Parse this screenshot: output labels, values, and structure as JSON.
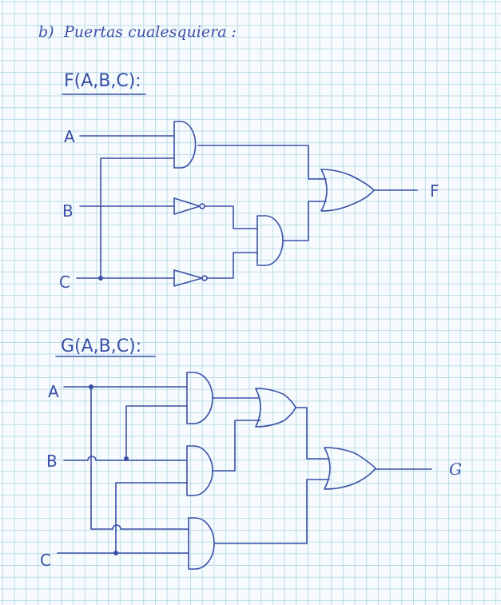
{
  "heading": {
    "index": "b)",
    "text": "Puertas cualesquiera :"
  },
  "circuit_f": {
    "title": "F(A,B,C):",
    "inputs": [
      "A",
      "B",
      "C"
    ],
    "output": "F"
  },
  "circuit_g": {
    "title": "G(A,B,C):",
    "inputs": [
      "A",
      "B",
      "C"
    ],
    "output": "G"
  }
}
